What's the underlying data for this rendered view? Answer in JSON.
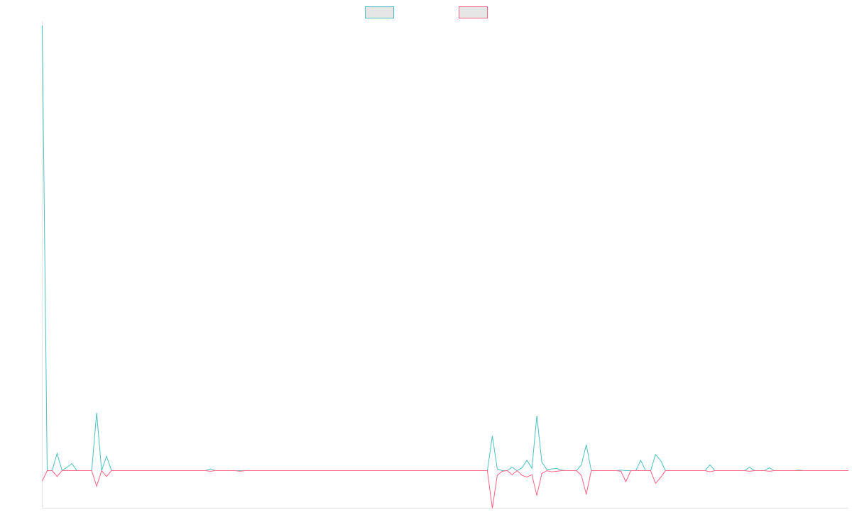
{
  "chart_data": {
    "type": "line",
    "title": "",
    "xlabel": "",
    "ylabel": "",
    "grid": false,
    "legend": {
      "placement": "top-center",
      "entries": [
        {
          "name": "",
          "color": "#4bc0c0"
        },
        {
          "name": "",
          "color": "#ff6384"
        }
      ]
    },
    "x_count": 164,
    "ylim": [
      -6.5,
      77
    ],
    "series": [
      {
        "name": "",
        "color": "#4bc0c0",
        "fill": "#e6e6e6",
        "points": [
          [
            0,
            77
          ],
          [
            1,
            0
          ],
          [
            2,
            0
          ],
          [
            3,
            3
          ],
          [
            4,
            0
          ],
          [
            6,
            1.2
          ],
          [
            7,
            0
          ],
          [
            10,
            0
          ],
          [
            11,
            10
          ],
          [
            12,
            0
          ],
          [
            13,
            2.5
          ],
          [
            14,
            0
          ],
          [
            33,
            0
          ],
          [
            34,
            0.3
          ],
          [
            35,
            0
          ],
          [
            39,
            0
          ],
          [
            40,
            0
          ],
          [
            90,
            0
          ],
          [
            91,
            6
          ],
          [
            92,
            0.3
          ],
          [
            93,
            0
          ],
          [
            94,
            0
          ],
          [
            95,
            0.6
          ],
          [
            96,
            0
          ],
          [
            97,
            0.5
          ],
          [
            98,
            1.8
          ],
          [
            99,
            0.4
          ],
          [
            100,
            9.5
          ],
          [
            101,
            1.5
          ],
          [
            102,
            0.2
          ],
          [
            103,
            0.3
          ],
          [
            104,
            0.4
          ],
          [
            105,
            0.1
          ],
          [
            106,
            0
          ],
          [
            107,
            0
          ],
          [
            108,
            0
          ],
          [
            109,
            1
          ],
          [
            110,
            4.5
          ],
          [
            111,
            0
          ],
          [
            116,
            0
          ],
          [
            117,
            0.1
          ],
          [
            118,
            0
          ],
          [
            119,
            0
          ],
          [
            120,
            0
          ],
          [
            121,
            1.8
          ],
          [
            122,
            0
          ],
          [
            123,
            0
          ],
          [
            124,
            2.8
          ],
          [
            125,
            1.8
          ],
          [
            126,
            0
          ],
          [
            134,
            0
          ],
          [
            135,
            1
          ],
          [
            136,
            0
          ],
          [
            142,
            0
          ],
          [
            143,
            0.6
          ],
          [
            144,
            0
          ],
          [
            146,
            0
          ],
          [
            147,
            0.5
          ],
          [
            148,
            0
          ],
          [
            152,
            0
          ],
          [
            153,
            0.1
          ],
          [
            154,
            0
          ],
          [
            163,
            0
          ]
        ]
      },
      {
        "name": "",
        "color": "#ff6384",
        "fill": "#e6e6e6",
        "points": [
          [
            0,
            -1.8
          ],
          [
            1,
            0
          ],
          [
            2,
            0
          ],
          [
            3,
            -1
          ],
          [
            4,
            0
          ],
          [
            6,
            0
          ],
          [
            7,
            0
          ],
          [
            10,
            0
          ],
          [
            11,
            -2.7
          ],
          [
            12,
            0
          ],
          [
            13,
            -1
          ],
          [
            14,
            0
          ],
          [
            33,
            0
          ],
          [
            34,
            -0.1
          ],
          [
            35,
            0
          ],
          [
            39,
            0
          ],
          [
            40,
            -0.1
          ],
          [
            41,
            0
          ],
          [
            90,
            0
          ],
          [
            91,
            -6.5
          ],
          [
            92,
            -0.8
          ],
          [
            93,
            -0.1
          ],
          [
            94,
            0
          ],
          [
            95,
            -0.7
          ],
          [
            96,
            0
          ],
          [
            97,
            -0.8
          ],
          [
            98,
            -1.1
          ],
          [
            99,
            -0.7
          ],
          [
            100,
            -4.3
          ],
          [
            101,
            -0.5
          ],
          [
            102,
            0
          ],
          [
            103,
            -0.2
          ],
          [
            104,
            -0.1
          ],
          [
            105,
            0
          ],
          [
            106,
            0
          ],
          [
            107,
            0
          ],
          [
            108,
            0
          ],
          [
            109,
            -0.8
          ],
          [
            110,
            -4.1
          ],
          [
            111,
            0
          ],
          [
            116,
            0
          ],
          [
            117,
            -0.1
          ],
          [
            118,
            -1.9
          ],
          [
            119,
            0
          ],
          [
            120,
            0
          ],
          [
            121,
            0
          ],
          [
            122,
            0
          ],
          [
            123,
            0
          ],
          [
            124,
            -2.2
          ],
          [
            125,
            -1.2
          ],
          [
            126,
            0
          ],
          [
            134,
            0
          ],
          [
            135,
            -0.2
          ],
          [
            136,
            0
          ],
          [
            142,
            0
          ],
          [
            143,
            -0.1
          ],
          [
            144,
            0
          ],
          [
            146,
            0
          ],
          [
            147,
            -0.1
          ],
          [
            148,
            0
          ],
          [
            152,
            0
          ],
          [
            153,
            0
          ],
          [
            154,
            0
          ],
          [
            163,
            0
          ]
        ]
      }
    ]
  }
}
